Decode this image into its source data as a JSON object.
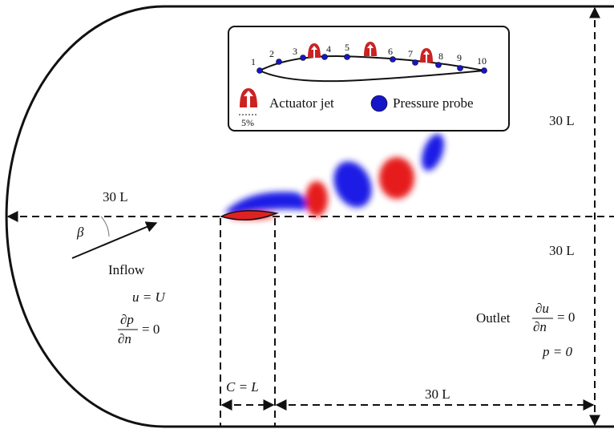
{
  "inset": {
    "probes": [
      "1",
      "2",
      "3",
      "4",
      "5",
      "6",
      "7",
      "8",
      "9",
      "10"
    ],
    "legend": {
      "actuator": "Actuator jet",
      "probe": "Pressure probe",
      "scale": "5%"
    }
  },
  "domain": {
    "upstream": "30 L",
    "top": "30 L",
    "bottom": "30 L",
    "downstream": "30 L",
    "angle": "β",
    "inflow": {
      "title": "Inflow",
      "velocity": "u = U",
      "numerator": "∂p",
      "denominator": "∂n",
      "equals": "= 0"
    },
    "outlet": {
      "title": "Outlet",
      "numerator": "∂u",
      "denominator": "∂n",
      "equals": "= 0",
      "pressure": "p = 0"
    },
    "chord": "C = L"
  }
}
